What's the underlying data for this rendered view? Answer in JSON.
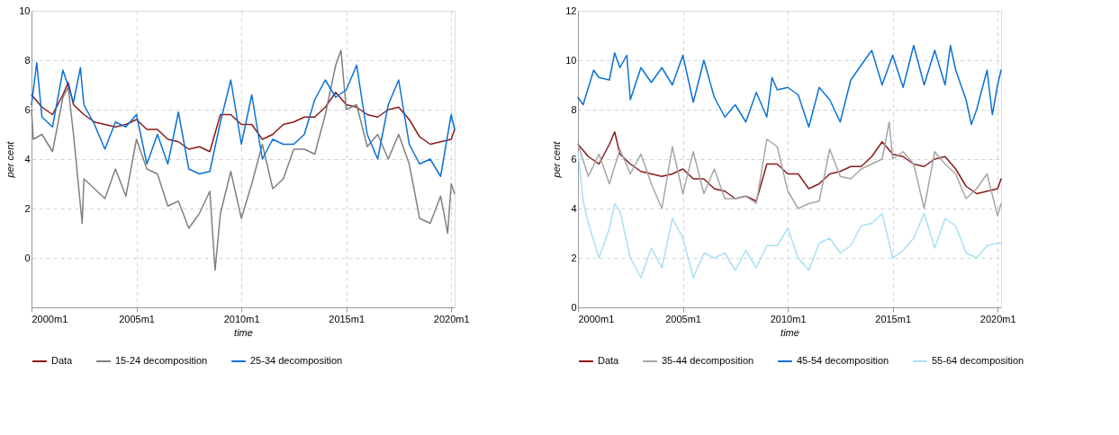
{
  "chart_data": [
    {
      "type": "line",
      "xlabel": "time",
      "ylabel": "per cent",
      "xlim": [
        "2000-01",
        "2020-03"
      ],
      "ylim": [
        -2,
        10
      ],
      "xticks": [
        {
          "value": "2000-01",
          "label": "2000m1"
        },
        {
          "value": "2005-01",
          "label": "2005m1"
        },
        {
          "value": "2010-01",
          "label": "2010m1"
        },
        {
          "value": "2015-01",
          "label": "2015m1"
        },
        {
          "value": "2020-01",
          "label": "2020m1"
        }
      ],
      "yticks": [
        0,
        2,
        4,
        6,
        8,
        10
      ],
      "grid": true,
      "legend": "bottom",
      "line_style": "solid",
      "marker": "none",
      "series": [
        {
          "name": "Data",
          "color": "#8b1a1a",
          "x": [
            "2000-01",
            "2000-07",
            "2001-01",
            "2001-07",
            "2001-10",
            "2002-01",
            "2002-07",
            "2003-01",
            "2003-07",
            "2004-01",
            "2004-07",
            "2005-01",
            "2005-07",
            "2006-01",
            "2006-07",
            "2007-01",
            "2007-07",
            "2008-01",
            "2008-07",
            "2009-01",
            "2009-07",
            "2010-01",
            "2010-07",
            "2011-01",
            "2011-07",
            "2012-01",
            "2012-07",
            "2013-01",
            "2013-07",
            "2014-01",
            "2014-07",
            "2015-01",
            "2015-07",
            "2016-01",
            "2016-07",
            "2017-01",
            "2017-07",
            "2018-01",
            "2018-07",
            "2019-01",
            "2019-07",
            "2020-01",
            "2020-03"
          ],
          "values": [
            6.6,
            6.1,
            5.8,
            6.6,
            7.1,
            6.2,
            5.8,
            5.5,
            5.4,
            5.3,
            5.4,
            5.6,
            5.2,
            5.2,
            4.8,
            4.7,
            4.4,
            4.5,
            4.3,
            5.8,
            5.8,
            5.4,
            5.4,
            4.8,
            5.0,
            5.4,
            5.5,
            5.7,
            5.7,
            6.1,
            6.7,
            6.2,
            6.1,
            5.8,
            5.7,
            6.0,
            6.1,
            5.6,
            4.9,
            4.6,
            4.7,
            4.8,
            5.2
          ]
        },
        {
          "name": "15-24 decomposition",
          "color": "#808080",
          "x": [
            "2000-01",
            "2000-02",
            "2000-07",
            "2001-01",
            "2001-07",
            "2001-10",
            "2002-01",
            "2002-06",
            "2002-07",
            "2003-01",
            "2003-07",
            "2004-01",
            "2004-07",
            "2005-01",
            "2005-07",
            "2006-01",
            "2006-07",
            "2007-01",
            "2007-07",
            "2008-01",
            "2008-07",
            "2008-10",
            "2009-01",
            "2009-07",
            "2010-01",
            "2010-07",
            "2011-01",
            "2011-07",
            "2012-01",
            "2012-07",
            "2013-01",
            "2013-07",
            "2014-01",
            "2014-07",
            "2014-10",
            "2015-01",
            "2015-07",
            "2016-01",
            "2016-07",
            "2017-01",
            "2017-07",
            "2018-01",
            "2018-07",
            "2019-01",
            "2019-07",
            "2019-11",
            "2020-01",
            "2020-03"
          ],
          "values": [
            6.0,
            4.8,
            5.0,
            4.3,
            6.5,
            6.9,
            5.0,
            1.4,
            3.2,
            2.8,
            2.4,
            3.6,
            2.5,
            4.8,
            3.6,
            3.4,
            2.1,
            2.3,
            1.2,
            1.8,
            2.7,
            -0.5,
            1.8,
            3.5,
            1.6,
            3.0,
            4.6,
            2.8,
            3.2,
            4.4,
            4.4,
            4.2,
            5.8,
            7.8,
            8.4,
            6.0,
            6.2,
            4.5,
            5.0,
            4.0,
            5.0,
            3.8,
            1.6,
            1.4,
            2.5,
            1.0,
            3.0,
            2.6
          ]
        },
        {
          "name": "25-34 decomposition",
          "color": "#0a72d6",
          "x": [
            "2000-01",
            "2000-04",
            "2000-07",
            "2001-01",
            "2001-07",
            "2002-01",
            "2002-05",
            "2002-07",
            "2003-01",
            "2003-07",
            "2004-01",
            "2004-07",
            "2005-01",
            "2005-07",
            "2006-01",
            "2006-07",
            "2007-01",
            "2007-07",
            "2008-01",
            "2008-07",
            "2009-01",
            "2009-07",
            "2010-01",
            "2010-07",
            "2011-01",
            "2011-07",
            "2012-01",
            "2012-07",
            "2013-01",
            "2013-07",
            "2014-01",
            "2014-07",
            "2015-01",
            "2015-07",
            "2016-01",
            "2016-07",
            "2017-01",
            "2017-07",
            "2018-01",
            "2018-07",
            "2019-01",
            "2019-07",
            "2020-01",
            "2020-03"
          ],
          "values": [
            6.2,
            7.9,
            5.7,
            5.3,
            7.6,
            6.3,
            7.7,
            6.2,
            5.4,
            4.4,
            5.5,
            5.3,
            5.8,
            3.8,
            5.0,
            3.8,
            5.9,
            3.6,
            3.4,
            3.5,
            5.5,
            7.2,
            4.6,
            6.6,
            4.0,
            4.8,
            4.6,
            4.6,
            5.0,
            6.4,
            7.2,
            6.5,
            6.8,
            7.8,
            5.0,
            4.0,
            6.2,
            7.2,
            4.6,
            3.8,
            4.0,
            3.3,
            5.8,
            5.2
          ]
        }
      ]
    },
    {
      "type": "line",
      "xlabel": "time",
      "ylabel": "per cent",
      "xlim": [
        "2000-01",
        "2020-03"
      ],
      "ylim": [
        0,
        12
      ],
      "xticks": [
        {
          "value": "2000-01",
          "label": "2000m1"
        },
        {
          "value": "2005-01",
          "label": "2005m1"
        },
        {
          "value": "2010-01",
          "label": "2010m1"
        },
        {
          "value": "2015-01",
          "label": "2015m1"
        },
        {
          "value": "2020-01",
          "label": "2020m1"
        }
      ],
      "yticks": [
        0,
        2,
        4,
        6,
        8,
        10,
        12
      ],
      "grid": true,
      "legend": "bottom",
      "line_style": "solid",
      "marker": "none",
      "series": [
        {
          "name": "Data",
          "color": "#8b1a1a",
          "x": [
            "2000-01",
            "2000-07",
            "2001-01",
            "2001-07",
            "2001-10",
            "2002-01",
            "2002-07",
            "2003-01",
            "2003-07",
            "2004-01",
            "2004-07",
            "2005-01",
            "2005-07",
            "2006-01",
            "2006-07",
            "2007-01",
            "2007-07",
            "2008-01",
            "2008-07",
            "2009-01",
            "2009-07",
            "2010-01",
            "2010-07",
            "2011-01",
            "2011-07",
            "2012-01",
            "2012-07",
            "2013-01",
            "2013-07",
            "2014-01",
            "2014-07",
            "2015-01",
            "2015-07",
            "2016-01",
            "2016-07",
            "2017-01",
            "2017-07",
            "2018-01",
            "2018-07",
            "2019-01",
            "2019-07",
            "2020-01",
            "2020-03"
          ],
          "values": [
            6.6,
            6.1,
            5.8,
            6.6,
            7.1,
            6.2,
            5.8,
            5.5,
            5.4,
            5.3,
            5.4,
            5.6,
            5.2,
            5.2,
            4.8,
            4.7,
            4.4,
            4.5,
            4.3,
            5.8,
            5.8,
            5.4,
            5.4,
            4.8,
            5.0,
            5.4,
            5.5,
            5.7,
            5.7,
            6.1,
            6.7,
            6.2,
            6.1,
            5.8,
            5.7,
            6.0,
            6.1,
            5.6,
            4.9,
            4.6,
            4.7,
            4.8,
            5.2
          ]
        },
        {
          "name": "35-44 decomposition",
          "color": "#a6a6a6",
          "x": [
            "2000-01",
            "2000-07",
            "2001-01",
            "2001-07",
            "2002-01",
            "2002-07",
            "2003-01",
            "2003-07",
            "2004-01",
            "2004-07",
            "2005-01",
            "2005-07",
            "2006-01",
            "2006-07",
            "2007-01",
            "2007-07",
            "2008-01",
            "2008-07",
            "2009-01",
            "2009-07",
            "2010-01",
            "2010-07",
            "2011-01",
            "2011-07",
            "2012-01",
            "2012-07",
            "2013-01",
            "2013-07",
            "2014-01",
            "2014-07",
            "2014-11",
            "2015-01",
            "2015-07",
            "2016-01",
            "2016-07",
            "2017-01",
            "2017-07",
            "2018-01",
            "2018-07",
            "2019-01",
            "2019-07",
            "2020-01",
            "2020-03"
          ],
          "values": [
            6.6,
            5.3,
            6.2,
            5.0,
            6.4,
            5.4,
            6.2,
            5.0,
            4.0,
            6.5,
            4.6,
            6.3,
            4.6,
            5.6,
            4.4,
            4.4,
            4.5,
            4.2,
            6.8,
            6.5,
            4.7,
            4.0,
            4.2,
            4.3,
            6.4,
            5.3,
            5.2,
            5.6,
            5.8,
            6.0,
            7.5,
            6.0,
            6.3,
            5.8,
            4.0,
            6.3,
            5.8,
            5.4,
            4.4,
            4.8,
            5.4,
            3.7,
            4.2
          ]
        },
        {
          "name": "45-54 decomposition",
          "color": "#0a72d6",
          "x": [
            "2000-01",
            "2000-04",
            "2000-10",
            "2001-01",
            "2001-07",
            "2001-10",
            "2002-01",
            "2002-05",
            "2002-07",
            "2003-01",
            "2003-07",
            "2004-01",
            "2004-07",
            "2005-01",
            "2005-07",
            "2006-01",
            "2006-07",
            "2007-01",
            "2007-07",
            "2008-01",
            "2008-07",
            "2009-01",
            "2009-04",
            "2009-07",
            "2010-01",
            "2010-07",
            "2011-01",
            "2011-07",
            "2012-01",
            "2012-07",
            "2013-01",
            "2013-07",
            "2014-01",
            "2014-07",
            "2015-01",
            "2015-07",
            "2016-01",
            "2016-07",
            "2017-01",
            "2017-07",
            "2017-10",
            "2018-01",
            "2018-07",
            "2018-10",
            "2019-01",
            "2019-07",
            "2019-10",
            "2020-01",
            "2020-03"
          ],
          "values": [
            8.5,
            8.2,
            9.6,
            9.3,
            9.2,
            10.3,
            9.7,
            10.2,
            8.4,
            9.7,
            9.1,
            9.7,
            9.0,
            10.2,
            8.3,
            10.0,
            8.5,
            7.7,
            8.2,
            7.5,
            8.7,
            7.7,
            9.3,
            8.8,
            8.9,
            8.6,
            7.3,
            8.9,
            8.4,
            7.5,
            9.2,
            9.8,
            10.4,
            9.0,
            10.2,
            8.9,
            10.6,
            9.0,
            10.4,
            9.0,
            10.6,
            9.6,
            8.4,
            7.4,
            8.0,
            9.6,
            7.8,
            9.0,
            9.6
          ]
        },
        {
          "name": "55-64 decomposition",
          "color": "#a9e0f4",
          "x": [
            "2000-01",
            "2000-04",
            "2000-07",
            "2001-01",
            "2001-07",
            "2001-10",
            "2002-01",
            "2002-07",
            "2003-01",
            "2003-07",
            "2004-01",
            "2004-07",
            "2005-01",
            "2005-07",
            "2006-01",
            "2006-07",
            "2007-01",
            "2007-07",
            "2008-01",
            "2008-07",
            "2009-01",
            "2009-07",
            "2010-01",
            "2010-07",
            "2011-01",
            "2011-07",
            "2012-01",
            "2012-07",
            "2013-01",
            "2013-07",
            "2014-01",
            "2014-07",
            "2015-01",
            "2015-07",
            "2016-01",
            "2016-07",
            "2017-01",
            "2017-07",
            "2018-01",
            "2018-07",
            "2019-01",
            "2019-07",
            "2020-01",
            "2020-03"
          ],
          "values": [
            6.3,
            4.3,
            3.4,
            2.0,
            3.2,
            4.2,
            3.9,
            2.0,
            1.2,
            2.4,
            1.6,
            3.6,
            2.8,
            1.2,
            2.2,
            2.0,
            2.2,
            1.5,
            2.3,
            1.6,
            2.5,
            2.5,
            3.2,
            2.0,
            1.5,
            2.6,
            2.8,
            2.2,
            2.5,
            3.3,
            3.4,
            3.8,
            2.0,
            2.3,
            2.8,
            3.8,
            2.4,
            3.6,
            3.3,
            2.2,
            2.0,
            2.5,
            2.6,
            2.6
          ]
        }
      ]
    }
  ]
}
